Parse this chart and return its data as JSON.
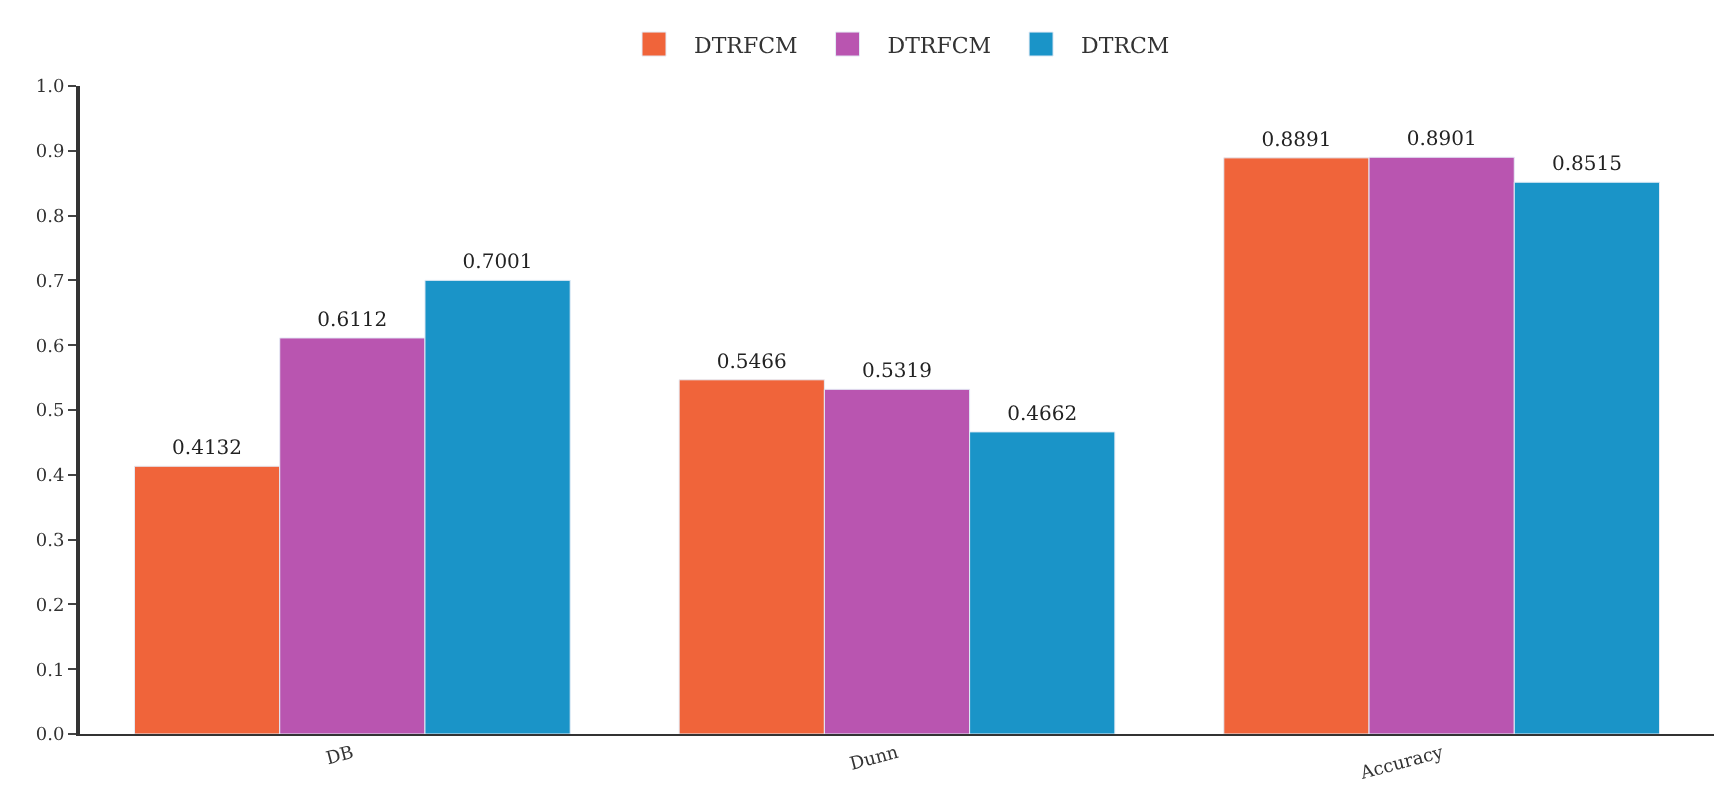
{
  "chart_data": {
    "type": "bar",
    "categories": [
      "DB",
      "Dunn",
      "Accuracy"
    ],
    "series": [
      {
        "name": "DTRFCM",
        "color": "#f0643a",
        "values": [
          0.4132,
          0.5466,
          0.8891
        ]
      },
      {
        "name": "DTRFCM",
        "color": "#b955b0",
        "values": [
          0.6112,
          0.5319,
          0.8901
        ]
      },
      {
        "name": "DTRCM",
        "color": "#1a94c8",
        "values": [
          0.7001,
          0.4662,
          0.8515
        ]
      }
    ],
    "ylim": [
      0,
      1.0
    ],
    "yticks": [
      {
        "value": 0,
        "label": "0.0"
      },
      0.1,
      0.2,
      0.3,
      0.4,
      0.5,
      0.6,
      0.7,
      0.8,
      0.9,
      {
        "value": 1,
        "label": "1.0"
      }
    ],
    "data_labels": true,
    "legend": "top"
  }
}
